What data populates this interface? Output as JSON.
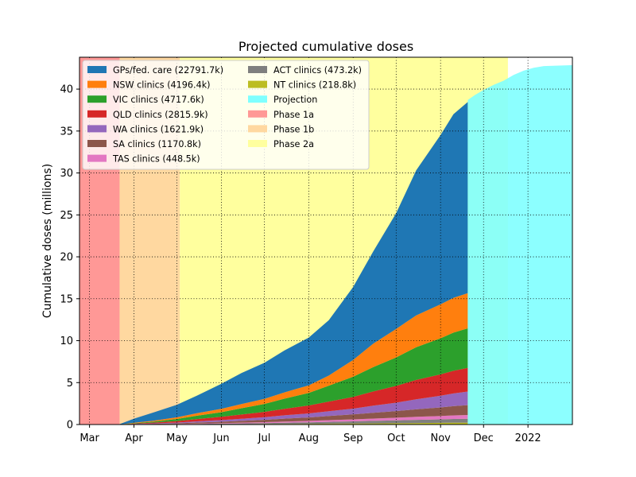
{
  "chart_data": {
    "type": "area",
    "title": "Projected cumulative doses",
    "xlabel": "",
    "ylabel": "Cumulative doses (millions)",
    "ylim": [
      0,
      43.8
    ],
    "y_ticks": [
      0,
      5,
      10,
      15,
      20,
      25,
      30,
      35,
      40
    ],
    "x_ticks": [
      "Mar",
      "Apr",
      "May",
      "Jun",
      "Jul",
      "Aug",
      "Sep",
      "Oct",
      "Nov",
      "Dec",
      "2022"
    ],
    "x_tick_dates": [
      "2021-03-01",
      "2021-04-01",
      "2021-05-01",
      "2021-06-01",
      "2021-07-01",
      "2021-08-01",
      "2021-09-01",
      "2021-10-01",
      "2021-11-01",
      "2021-12-01",
      "2022-01-01"
    ],
    "xlim": [
      "2021-02-22",
      "2022-02-01"
    ],
    "grid": true,
    "legend_placement": "top-left",
    "phases": [
      {
        "name": "Phase 1a",
        "color": "#ff9896",
        "start": "2021-02-22",
        "end": "2021-03-22"
      },
      {
        "name": "Phase 1b",
        "color": "#ffd8a0",
        "start": "2021-03-22",
        "end": "2021-05-03"
      },
      {
        "name": "Phase 2a",
        "color": "#ffff9e",
        "start": "2021-05-03",
        "end": "2021-12-18"
      }
    ],
    "x": [
      "2021-03-22",
      "2021-04-01",
      "2021-04-15",
      "2021-05-01",
      "2021-05-15",
      "2021-06-01",
      "2021-06-15",
      "2021-07-01",
      "2021-07-15",
      "2021-08-01",
      "2021-08-15",
      "2021-09-01",
      "2021-09-15",
      "2021-10-01",
      "2021-10-15",
      "2021-11-01",
      "2021-11-10",
      "2021-11-20"
    ],
    "series": [
      {
        "name": "GPs/fed. care (22791.7k)",
        "color": "#1f77b4",
        "values": [
          0.05,
          0.5,
          1.0,
          1.5,
          2.1,
          3.0,
          3.7,
          4.3,
          5.0,
          5.7,
          6.6,
          8.7,
          11.0,
          13.8,
          17.3,
          20.2,
          21.9,
          22.8
        ]
      },
      {
        "name": "NSW clinics (4196.4k)",
        "color": "#ff7f0e",
        "values": [
          0.0,
          0.05,
          0.1,
          0.2,
          0.3,
          0.4,
          0.5,
          0.6,
          0.75,
          0.9,
          1.2,
          2.0,
          2.8,
          3.4,
          3.8,
          4.05,
          4.15,
          4.2
        ]
      },
      {
        "name": "VIC clinics (4717.6k)",
        "color": "#2ca02c",
        "values": [
          0.0,
          0.05,
          0.12,
          0.25,
          0.4,
          0.55,
          0.75,
          0.95,
          1.2,
          1.5,
          1.9,
          2.4,
          2.9,
          3.4,
          3.9,
          4.3,
          4.55,
          4.72
        ]
      },
      {
        "name": "QLD clinics (2815.9k)",
        "color": "#d62728",
        "values": [
          0.0,
          0.04,
          0.1,
          0.18,
          0.28,
          0.38,
          0.5,
          0.62,
          0.78,
          0.95,
          1.15,
          1.4,
          1.7,
          2.0,
          2.3,
          2.55,
          2.7,
          2.82
        ]
      },
      {
        "name": "WA clinics (1621.9k)",
        "color": "#9467bd",
        "values": [
          0.0,
          0.02,
          0.05,
          0.09,
          0.14,
          0.2,
          0.26,
          0.33,
          0.4,
          0.48,
          0.58,
          0.7,
          0.85,
          1.0,
          1.2,
          1.4,
          1.52,
          1.62
        ]
      },
      {
        "name": "SA clinics (1170.8k)",
        "color": "#8c564b",
        "values": [
          0.0,
          0.02,
          0.04,
          0.07,
          0.11,
          0.16,
          0.21,
          0.27,
          0.34,
          0.41,
          0.49,
          0.58,
          0.68,
          0.79,
          0.9,
          1.02,
          1.1,
          1.17
        ]
      },
      {
        "name": "TAS clinics (448.5k)",
        "color": "#e377c2",
        "values": [
          0.0,
          0.01,
          0.02,
          0.03,
          0.05,
          0.07,
          0.09,
          0.11,
          0.14,
          0.17,
          0.2,
          0.24,
          0.28,
          0.32,
          0.36,
          0.4,
          0.43,
          0.45
        ]
      },
      {
        "name": "ACT clinics (473.2k)",
        "color": "#7f7f7f",
        "values": [
          0.0,
          0.01,
          0.02,
          0.03,
          0.05,
          0.07,
          0.09,
          0.12,
          0.15,
          0.18,
          0.22,
          0.26,
          0.3,
          0.34,
          0.38,
          0.42,
          0.45,
          0.47
        ]
      },
      {
        "name": "NT clinics (218.8k)",
        "color": "#bcbd22",
        "values": [
          0.0,
          0.005,
          0.01,
          0.015,
          0.025,
          0.035,
          0.045,
          0.055,
          0.07,
          0.085,
          0.1,
          0.12,
          0.135,
          0.155,
          0.175,
          0.195,
          0.21,
          0.22
        ]
      }
    ],
    "projection": {
      "name": "Projection",
      "color": "#7fffff",
      "x": [
        "2021-11-20",
        "2021-11-25",
        "2021-12-01",
        "2021-12-08",
        "2021-12-15",
        "2021-12-22",
        "2021-12-29",
        "2022-01-05",
        "2022-01-12",
        "2022-01-31"
      ],
      "values": [
        38.7,
        39.3,
        39.9,
        40.5,
        41.0,
        41.7,
        42.2,
        42.55,
        42.75,
        42.85
      ]
    },
    "legend": [
      "GPs/fed. care (22791.7k)",
      "NSW clinics (4196.4k)",
      "VIC clinics (4717.6k)",
      "QLD clinics (2815.9k)",
      "WA clinics (1621.9k)",
      "SA clinics (1170.8k)",
      "TAS clinics (448.5k)",
      "ACT clinics (473.2k)",
      "NT clinics (218.8k)",
      "Projection",
      "Phase 1a",
      "Phase 1b",
      "Phase 2a"
    ]
  }
}
